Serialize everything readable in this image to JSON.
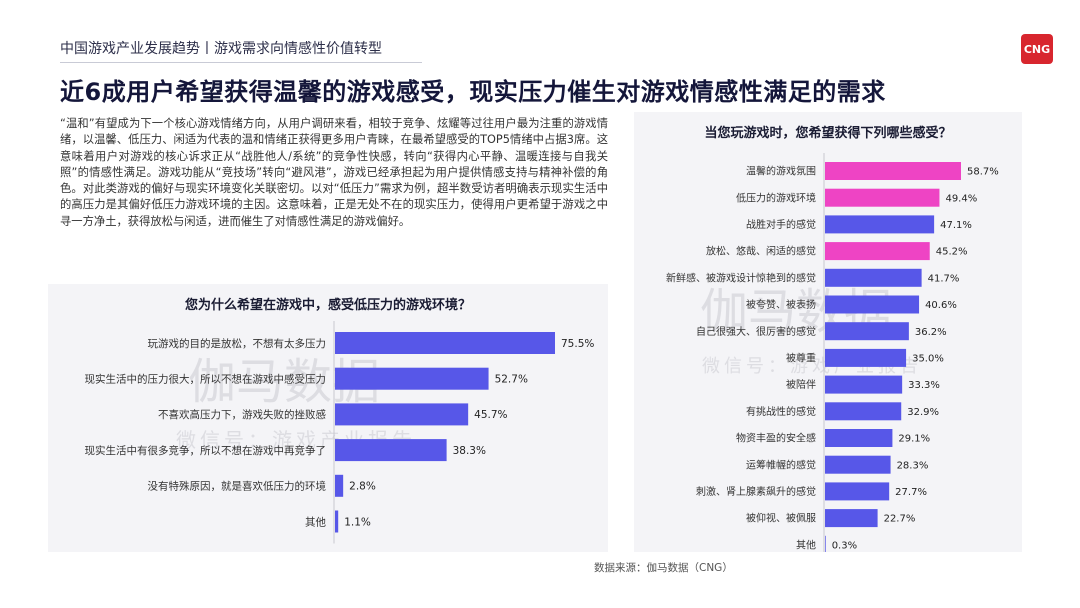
{
  "header": {
    "subtitle": "中国游戏产业发展趋势丨游戏需求向情感性价值转型",
    "title": "近6成用户希望获得温馨的游戏感受，现实压力催生对游戏情感性满足的需求",
    "logo_text": "CNG"
  },
  "body_text": "“温和”有望成为下一个核心游戏情绪方向，从用户调研来看，相较于竞争、炫耀等过往用户最为注重的游戏情绪，以温馨、低压力、闲适为代表的温和情绪正获得更多用户青睐，在最希望感受的TOP5情绪中占据3席。这意味着用户对游戏的核心诉求正从“战胜他人/系统”的竞争性快感，转向“获得内心平静、温暖连接与自我关照”的情感性满足。游戏功能从“竞技场”转向“避风港”，游戏已经承担起为用户提供情感支持与精神补偿的角色。对此类游戏的偏好与现实环境变化关联密切。以对“低压力”需求为例，超半数受访者明确表示现实生活中的高压力是其偏好低压力游戏环境的主因。这意味着，正是无处不在的现实压力，使得用户更希望于游戏之中寻一方净土，获得放松与闲适，进而催生了对情感性满足的游戏偏好。",
  "watermark": {
    "main": "伽马数据",
    "sub": "微信号：游戏产业报告"
  },
  "source": "数据来源：伽马数据（CNG）",
  "colors": {
    "bar_default": "#5757e8",
    "bar_highlight": "#ee44c4",
    "title_dark": "#14163a",
    "brand_red": "#d8262e"
  },
  "chart_data": [
    {
      "type": "bar",
      "orientation": "horizontal",
      "title": "您为什么希望在游戏中，感受低压力的游戏环境？",
      "categories": [
        "玩游戏的目的是放松，不想有太多压力",
        "现实生活中的压力很大，所以不想在游戏中感受压力",
        "不喜欢高压力下，游戏失败的挫败感",
        "现实生活中有很多竞争，所以不想在游戏中再竞争了",
        "没有特殊原因，就是喜欢低压力的环境",
        "其他"
      ],
      "values": [
        75.5,
        52.7,
        45.7,
        38.3,
        2.8,
        1.1
      ],
      "labels": [
        "75.5%",
        "52.7%",
        "45.7%",
        "38.3%",
        "2.8%",
        "1.1%"
      ],
      "highlight": [],
      "unit": "%"
    },
    {
      "type": "bar",
      "orientation": "horizontal",
      "title": "当您玩游戏时，您希望获得下列哪些感受？",
      "categories": [
        "温馨的游戏氛围",
        "低压力的游戏环境",
        "战胜对手的感觉",
        "放松、悠哉、闲适的感觉",
        "新鲜感、被游戏设计惊艳到的感觉",
        "被夸赞、被表扬",
        "自己很强大、很厉害的感觉",
        "被尊重",
        "被陪伴",
        "有挑战性的感觉",
        "物资丰盈的安全感",
        "运筹帷幄的感觉",
        "刺激、肾上腺素飙升的感觉",
        "被仰视、被佩服",
        "其他"
      ],
      "values": [
        58.7,
        49.4,
        47.1,
        45.2,
        41.7,
        40.6,
        36.2,
        35.0,
        33.3,
        32.9,
        29.1,
        28.3,
        27.7,
        22.7,
        0.3
      ],
      "labels": [
        "58.7%",
        "49.4%",
        "47.1%",
        "45.2%",
        "41.7%",
        "40.6%",
        "36.2%",
        "35.0%",
        "33.3%",
        "32.9%",
        "29.1%",
        "28.3%",
        "27.7%",
        "22.7%",
        "0.3%"
      ],
      "highlight": [
        0,
        1,
        3
      ],
      "unit": "%"
    }
  ]
}
